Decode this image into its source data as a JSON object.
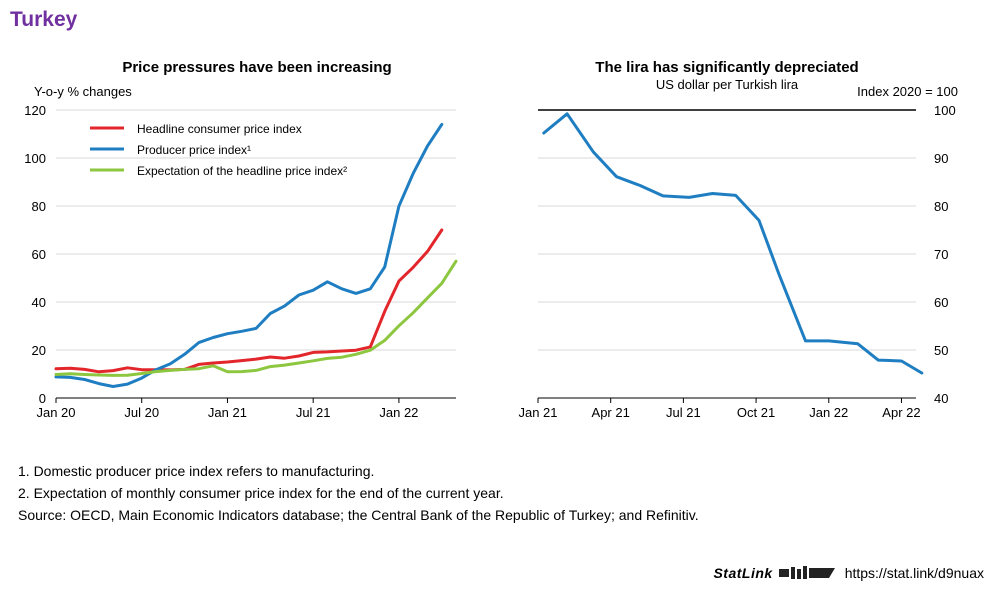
{
  "page_title": "Turkey",
  "notes": [
    "1. Domestic producer price index refers to manufacturing.",
    "2. Expectation of monthly consumer price index for the end of the current year.",
    "Source: OECD, Main Economic Indicators database; the Central Bank of the Republic of Turkey; and Refinitiv."
  ],
  "footer": {
    "statlink_label": "StatLink",
    "url": "https://stat.link/d9nuax"
  },
  "chart_data": [
    {
      "type": "line",
      "title": "Price pressures have been increasing",
      "ylabel": "Y-o-y % changes",
      "ylim": [
        0,
        120
      ],
      "yticks": [
        0,
        20,
        40,
        60,
        80,
        100,
        120
      ],
      "x_range": [
        2020.0,
        2022.333
      ],
      "xticks": [
        {
          "label": "Jan 20",
          "x": 2020.0
        },
        {
          "label": "Jul 20",
          "x": 2020.5
        },
        {
          "label": "Jan 21",
          "x": 2021.0
        },
        {
          "label": "Jul 21",
          "x": 2021.5
        },
        {
          "label": "Jan 22",
          "x": 2022.0
        }
      ],
      "legend_position": "top-left",
      "grid": true,
      "x": [
        2020.0,
        2020.083,
        2020.167,
        2020.25,
        2020.333,
        2020.417,
        2020.5,
        2020.583,
        2020.667,
        2020.75,
        2020.833,
        2020.917,
        2021.0,
        2021.083,
        2021.167,
        2021.25,
        2021.333,
        2021.417,
        2021.5,
        2021.583,
        2021.667,
        2021.75,
        2021.833,
        2021.917,
        2022.0,
        2022.083,
        2022.167,
        2022.25,
        2022.333
      ],
      "series": [
        {
          "name": "Headline consumer price index",
          "color": "#e2262b",
          "values": [
            12.2,
            12.4,
            11.9,
            10.9,
            11.4,
            12.6,
            11.8,
            11.8,
            11.7,
            11.9,
            14.0,
            14.6,
            15.0,
            15.6,
            16.2,
            17.1,
            16.6,
            17.5,
            19.0,
            19.2,
            19.6,
            19.9,
            21.3,
            36.1,
            48.7,
            54.4,
            61.1,
            70.0,
            null
          ]
        },
        {
          "name": "Producer price index¹",
          "color": "#1f7ec1",
          "values": [
            8.8,
            8.6,
            7.7,
            6.0,
            4.8,
            5.8,
            8.3,
            11.8,
            14.3,
            18.2,
            23.1,
            25.2,
            26.8,
            27.8,
            29.0,
            35.2,
            38.3,
            42.9,
            44.9,
            48.4,
            45.5,
            43.6,
            45.5,
            54.6,
            79.9,
            93.5,
            105.0,
            114.0,
            null
          ]
        },
        {
          "name": "Expectation of the headline price index²",
          "color": "#8dc63f",
          "values": [
            9.8,
            10.1,
            9.8,
            9.6,
            9.4,
            9.5,
            10.2,
            11.0,
            11.5,
            11.9,
            12.2,
            13.4,
            10.9,
            11.0,
            11.5,
            13.1,
            13.7,
            14.6,
            15.5,
            16.5,
            17.0,
            18.2,
            19.9,
            24.0,
            30.1,
            35.5,
            41.7,
            47.8,
            57.0
          ]
        }
      ]
    },
    {
      "type": "line",
      "title": "The lira has significantly depreciated",
      "subtitle": "US dollar per Turkish lira",
      "ylabel": "Index 2020 = 100",
      "ylim": [
        40,
        100
      ],
      "yticks": [
        40,
        50,
        60,
        70,
        80,
        90,
        100
      ],
      "y_axis_side": "right",
      "x_range": [
        2021.0,
        2022.3
      ],
      "xticks": [
        {
          "label": "Jan 21",
          "x": 2021.0
        },
        {
          "label": "Apr 21",
          "x": 2021.25
        },
        {
          "label": "Jul 21",
          "x": 2021.5
        },
        {
          "label": "Oct 21",
          "x": 2021.75
        },
        {
          "label": "Jan 22",
          "x": 2022.0
        },
        {
          "label": "Apr 22",
          "x": 2022.25
        }
      ],
      "grid": true,
      "x": [
        2021.02,
        2021.1,
        2021.19,
        2021.27,
        2021.35,
        2021.43,
        2021.52,
        2021.6,
        2021.68,
        2021.76,
        2021.83,
        2021.92,
        2022.0,
        2022.1,
        2022.17,
        2022.25,
        2022.32
      ],
      "series": [
        {
          "name": "",
          "color": "#1f7ec1",
          "values": [
            95.2,
            99.2,
            91.3,
            86.1,
            84.3,
            82.1,
            81.8,
            82.6,
            82.2,
            77.0,
            65.6,
            51.9,
            51.9,
            51.3,
            47.9,
            47.7,
            45.2
          ]
        }
      ]
    }
  ]
}
